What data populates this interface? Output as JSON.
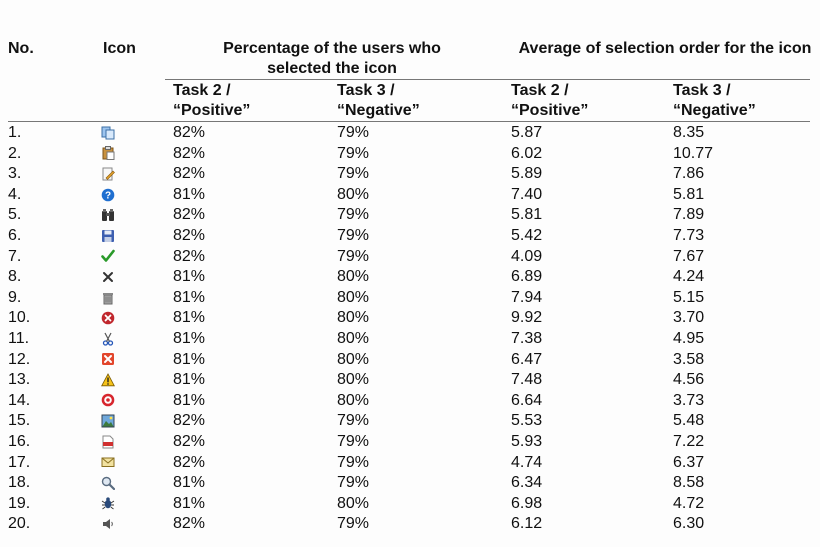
{
  "headers": {
    "no": "No.",
    "icon": "Icon",
    "pct_group": "Percentage of the users who selected the icon",
    "avg_group": "Average of selection order for the icon",
    "task2": "Task 2 / “Positive”",
    "task3": "Task 3 / “Negative”"
  },
  "rows": [
    {
      "no": "1.",
      "icon": "copy-icon",
      "pct_t2": "82%",
      "pct_t3": "79%",
      "avg_t2": "5.87",
      "avg_t3": "8.35"
    },
    {
      "no": "2.",
      "icon": "paste-icon",
      "pct_t2": "82%",
      "pct_t3": "79%",
      "avg_t2": "6.02",
      "avg_t3": "10.77"
    },
    {
      "no": "3.",
      "icon": "edit-document-icon",
      "pct_t2": "82%",
      "pct_t3": "79%",
      "avg_t2": "5.89",
      "avg_t3": "7.86"
    },
    {
      "no": "4.",
      "icon": "help-icon",
      "pct_t2": "81%",
      "pct_t3": "80%",
      "avg_t2": "7.40",
      "avg_t3": "5.81"
    },
    {
      "no": "5.",
      "icon": "binoculars-icon",
      "pct_t2": "82%",
      "pct_t3": "79%",
      "avg_t2": "5.81",
      "avg_t3": "7.89"
    },
    {
      "no": "6.",
      "icon": "save-icon",
      "pct_t2": "82%",
      "pct_t3": "79%",
      "avg_t2": "5.42",
      "avg_t3": "7.73"
    },
    {
      "no": "7.",
      "icon": "checkmark-icon",
      "pct_t2": "82%",
      "pct_t3": "79%",
      "avg_t2": "4.09",
      "avg_t3": "7.67"
    },
    {
      "no": "8.",
      "icon": "cross-icon",
      "pct_t2": "81%",
      "pct_t3": "80%",
      "avg_t2": "6.89",
      "avg_t3": "4.24"
    },
    {
      "no": "9.",
      "icon": "trash-icon",
      "pct_t2": "81%",
      "pct_t3": "80%",
      "avg_t2": "7.94",
      "avg_t3": "5.15"
    },
    {
      "no": "10.",
      "icon": "error-circle-icon",
      "pct_t2": "81%",
      "pct_t3": "80%",
      "avg_t2": "9.92",
      "avg_t3": "3.70"
    },
    {
      "no": "11.",
      "icon": "scissors-icon",
      "pct_t2": "81%",
      "pct_t3": "80%",
      "avg_t2": "7.38",
      "avg_t3": "4.95"
    },
    {
      "no": "12.",
      "icon": "close-box-icon",
      "pct_t2": "81%",
      "pct_t3": "80%",
      "avg_t2": "6.47",
      "avg_t3": "3.58"
    },
    {
      "no": "13.",
      "icon": "warning-icon",
      "pct_t2": "81%",
      "pct_t3": "80%",
      "avg_t2": "7.48",
      "avg_t3": "4.56"
    },
    {
      "no": "14.",
      "icon": "target-icon",
      "pct_t2": "81%",
      "pct_t3": "80%",
      "avg_t2": "6.64",
      "avg_t3": "3.73"
    },
    {
      "no": "15.",
      "icon": "picture-icon",
      "pct_t2": "82%",
      "pct_t3": "79%",
      "avg_t2": "5.53",
      "avg_t3": "5.48"
    },
    {
      "no": "16.",
      "icon": "pdf-icon",
      "pct_t2": "82%",
      "pct_t3": "79%",
      "avg_t2": "5.93",
      "avg_t3": "7.22"
    },
    {
      "no": "17.",
      "icon": "envelope-icon",
      "pct_t2": "82%",
      "pct_t3": "79%",
      "avg_t2": "4.74",
      "avg_t3": "6.37"
    },
    {
      "no": "18.",
      "icon": "magnifier-icon",
      "pct_t2": "81%",
      "pct_t3": "79%",
      "avg_t2": "6.34",
      "avg_t3": "8.58"
    },
    {
      "no": "19.",
      "icon": "bug-icon",
      "pct_t2": "81%",
      "pct_t3": "80%",
      "avg_t2": "6.98",
      "avg_t3": "4.72"
    },
    {
      "no": "20.",
      "icon": "speaker-icon",
      "pct_t2": "82%",
      "pct_t3": "79%",
      "avg_t2": "6.12",
      "avg_t3": "6.30"
    }
  ]
}
